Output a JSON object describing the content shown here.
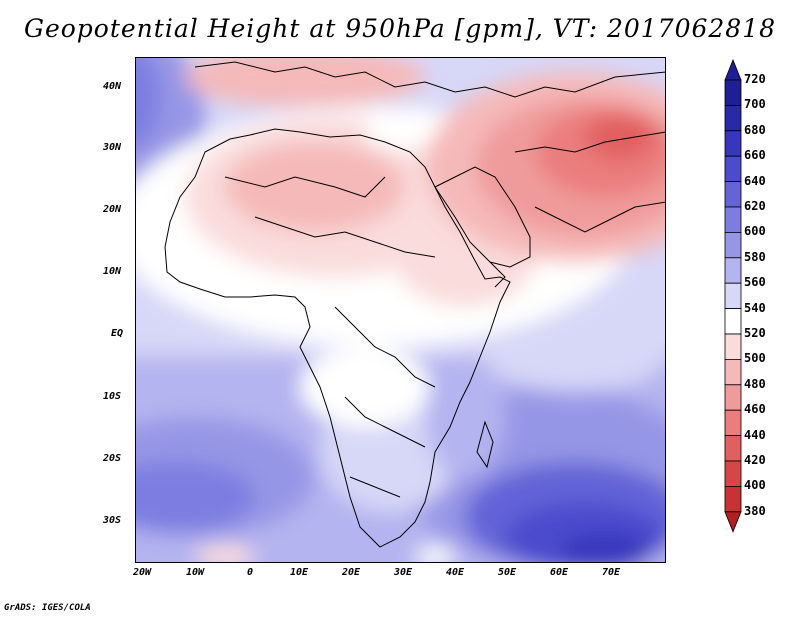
{
  "title": "Geopotential Height at 950hPa [gpm], VT: 2017062818",
  "map": {
    "region": "Africa and Arabian Peninsula",
    "variable": "Geopotential Height",
    "level": "950hPa",
    "units": "gpm",
    "valid_time": "2017062818",
    "lat_range": [
      -37,
      45
    ],
    "lon_range": [
      -22,
      80
    ],
    "lat_labels": [
      "40N",
      "30N",
      "20N",
      "10N",
      "EQ",
      "10S",
      "20S",
      "30S"
    ],
    "lat_values": [
      40,
      30,
      20,
      10,
      0,
      -10,
      -20,
      -30
    ],
    "lon_labels": [
      "20W",
      "10W",
      "0",
      "10E",
      "20E",
      "30E",
      "40E",
      "50E",
      "60E",
      "70E"
    ],
    "lon_values": [
      -20,
      -10,
      0,
      10,
      20,
      30,
      40,
      50,
      60,
      70
    ]
  },
  "colorbar": {
    "levels": [
      "720",
      "700",
      "680",
      "660",
      "640",
      "620",
      "600",
      "580",
      "560",
      "540",
      "520",
      "500",
      "480",
      "460",
      "440",
      "420",
      "400",
      "380"
    ],
    "colors": [
      "#1e1e96",
      "#2828aa",
      "#3737be",
      "#4b4bcd",
      "#6464d7",
      "#7d7de1",
      "#9696e6",
      "#b4b4f0",
      "#d7d7f7",
      "#ffffff",
      "#fadcdc",
      "#f5b9b9",
      "#f09b9b",
      "#eb7d7d",
      "#e15f5f",
      "#d74646",
      "#c83232",
      "#b41e1e"
    ]
  },
  "credit": "GrADS: IGES/COLA"
}
